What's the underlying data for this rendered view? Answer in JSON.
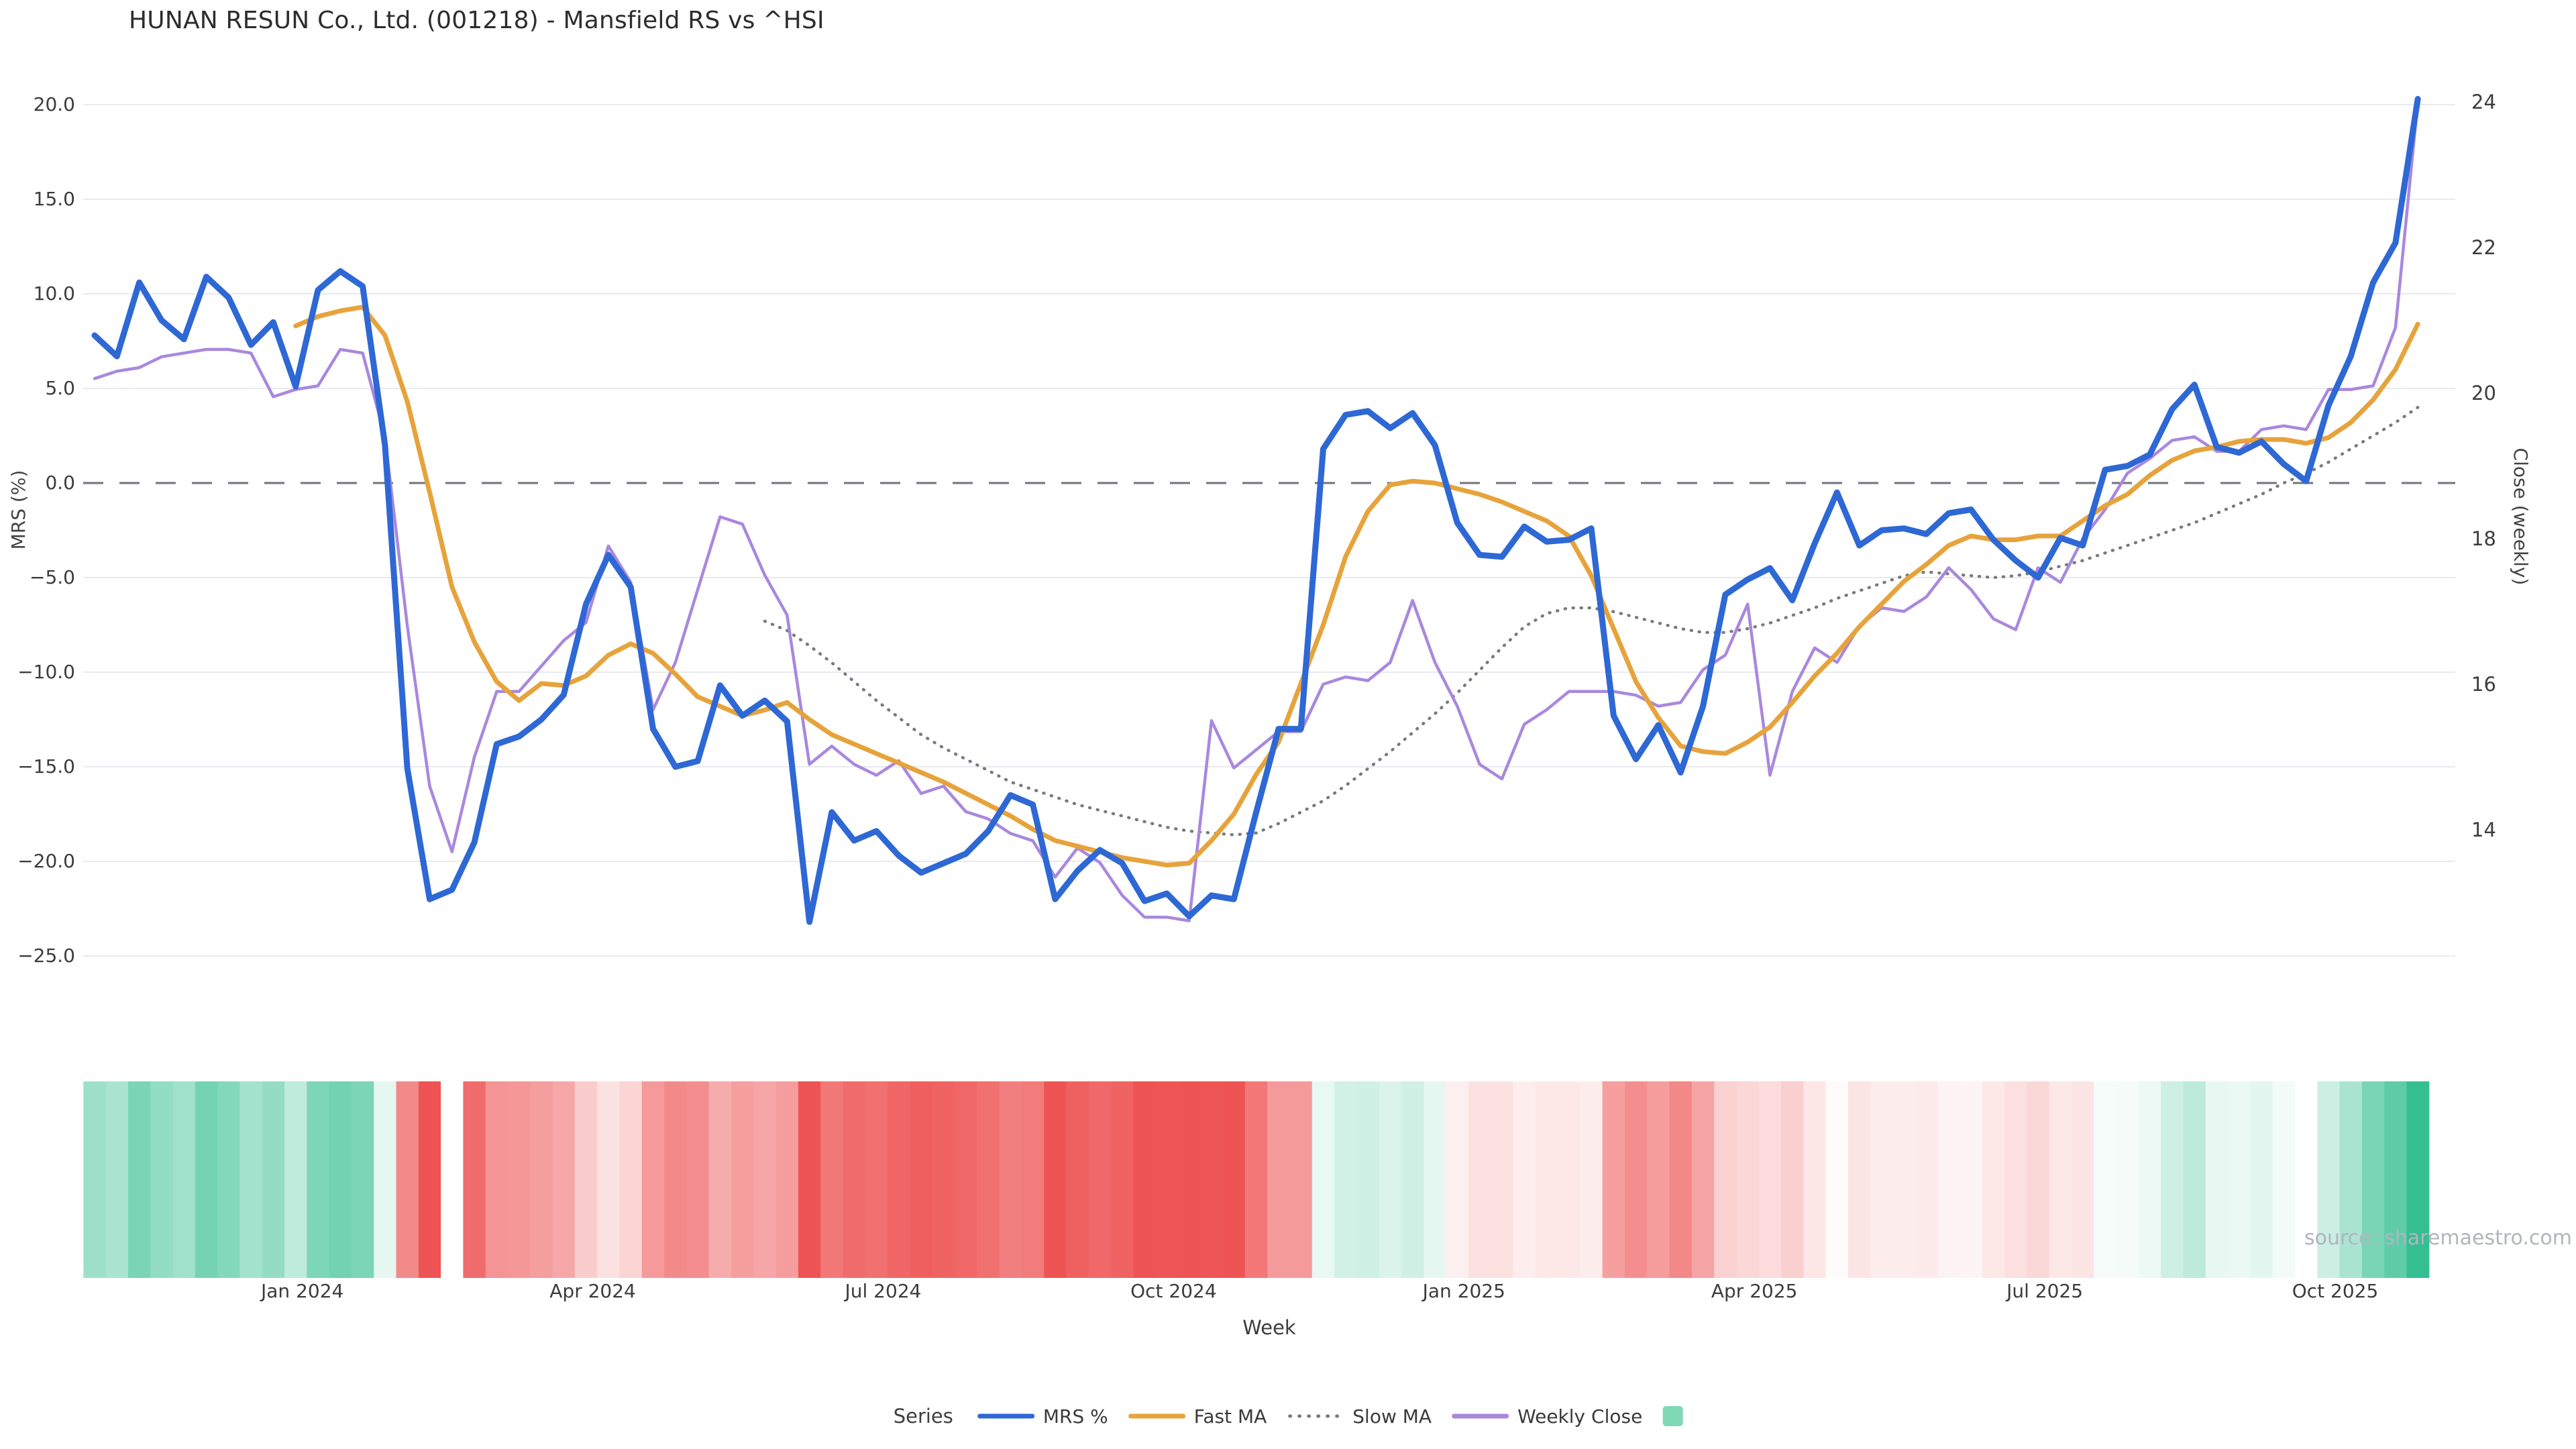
{
  "title": "HUNAN RESUN Co., Ltd. (001218) - Mansfield RS vs ^HSI",
  "source_text": "source: sharemaestro.com",
  "colors": {
    "mrs": "#2e68d5",
    "fast_ma": "#e7a33b",
    "slow_ma": "#7a7a7a",
    "weekly_close": "#a988de",
    "zero_line": "#72727c",
    "gridline": "#e8eaf0",
    "heat_green": "#35bf90",
    "heat_red": "#ee5454",
    "legend_square": "#7fd9b4",
    "text_dark": "#3c3c3c"
  },
  "legend": {
    "title": "Series",
    "items": [
      {
        "label": "MRS %",
        "swatch": "line",
        "color": "#2e68d5"
      },
      {
        "label": "Fast MA",
        "swatch": "line",
        "color": "#e7a33b"
      },
      {
        "label": "Slow MA",
        "swatch": "dotted",
        "color": "#7a7a7a"
      },
      {
        "label": "Weekly Close",
        "swatch": "line",
        "color": "#a988de"
      },
      {
        "label": "",
        "swatch": "square",
        "color": "#7fd9b4"
      }
    ]
  },
  "axes": {
    "x": {
      "title": "Week",
      "ticks": [
        {
          "week": 9.3,
          "label": "Jan 2024"
        },
        {
          "week": 22.3,
          "label": "Apr 2024"
        },
        {
          "week": 35.3,
          "label": "Jul 2024"
        },
        {
          "week": 48.3,
          "label": "Oct 2024"
        },
        {
          "week": 61.3,
          "label": "Jan 2025"
        },
        {
          "week": 74.3,
          "label": "Apr 2025"
        },
        {
          "week": 87.3,
          "label": "Jul 2025"
        },
        {
          "week": 100.3,
          "label": "Oct 2025"
        }
      ]
    },
    "y_left": {
      "title": "MRS (%)",
      "ticks": [
        {
          "v": 20,
          "label": "20.0"
        },
        {
          "v": 15,
          "label": "15.0"
        },
        {
          "v": 10,
          "label": "10.0"
        },
        {
          "v": 5,
          "label": "5.0"
        },
        {
          "v": 0,
          "label": "0.0"
        },
        {
          "v": -5,
          "label": "−5.0"
        },
        {
          "v": -10,
          "label": "−10.0"
        },
        {
          "v": -15,
          "label": "−15.0"
        },
        {
          "v": -20,
          "label": "−20.0"
        },
        {
          "v": -25,
          "label": "−25.0"
        }
      ]
    },
    "y_right": {
      "title": "Close (weekly)",
      "ticks": [
        {
          "v": 24,
          "label": "24"
        },
        {
          "v": 22,
          "label": "22"
        },
        {
          "v": 20,
          "label": "20"
        },
        {
          "v": 18,
          "label": "18"
        },
        {
          "v": 16,
          "label": "16"
        },
        {
          "v": 14,
          "label": "14"
        }
      ]
    }
  },
  "chart_data": {
    "type": "line",
    "title": "HUNAN RESUN Co., Ltd. (001218) - Mansfield RS vs ^HSI",
    "xlabel": "Week",
    "ylabel_left": "MRS (%)",
    "ylabel_right": "Close (weekly)",
    "x_unit": "weekly index, Nov 2023 - Nov 2025",
    "n_weeks": 105,
    "ylim_left": [
      -27.5,
      21.5
    ],
    "ylim_right": [
      13.2,
      24.3
    ],
    "grid": true,
    "zero_reference_line": 0,
    "legend_position": "bottom-center",
    "series": [
      {
        "name": "MRS %",
        "axis": "left",
        "style": "solid",
        "values": [
          7.8,
          6.7,
          10.6,
          8.6,
          7.6,
          10.9,
          9.8,
          7.3,
          8.5,
          5.1,
          10.2,
          11.2,
          10.4,
          2.0,
          -15.1,
          -22.0,
          -21.5,
          -19.0,
          -13.8,
          -13.4,
          -12.5,
          -11.2,
          -6.4,
          -3.8,
          -5.5,
          -13.0,
          -15.0,
          -14.7,
          -10.7,
          -12.3,
          -11.5,
          -12.6,
          -23.2,
          -17.4,
          -18.9,
          -18.4,
          -19.7,
          -20.6,
          -20.1,
          -19.6,
          -18.4,
          -16.5,
          -17.0,
          -22.0,
          -20.5,
          -19.4,
          -20.1,
          -22.1,
          -21.7,
          -22.9,
          -21.8,
          -22.0,
          -17.4,
          -13.0,
          -13.0,
          1.8,
          3.6,
          3.8,
          2.9,
          3.7,
          2.0,
          -2.1,
          -3.8,
          -3.9,
          -2.3,
          -3.1,
          -3.0,
          -2.4,
          -12.3,
          -14.6,
          -12.8,
          -15.3,
          -11.8,
          -5.9,
          -5.1,
          -4.5,
          -6.2,
          -3.2,
          -0.5,
          -3.3,
          -2.5,
          -2.4,
          -2.7,
          -1.6,
          -1.4,
          -3.0,
          -4.1,
          -5.0,
          -2.9,
          -3.3,
          0.7,
          0.9,
          1.5,
          3.9,
          5.2,
          1.9,
          1.6,
          2.2,
          1.0,
          0.1,
          4.1,
          6.7,
          10.6,
          12.7,
          20.3
        ]
      },
      {
        "name": "Fast MA",
        "axis": "left",
        "style": "solid",
        "values": [
          null,
          null,
          null,
          null,
          null,
          null,
          null,
          null,
          null,
          8.3,
          8.8,
          9.1,
          9.3,
          7.8,
          4.3,
          -0.5,
          -5.5,
          -8.4,
          -10.5,
          -11.5,
          -10.6,
          -10.7,
          -10.2,
          -9.1,
          -8.5,
          -9.0,
          -10.1,
          -11.3,
          -11.8,
          -12.3,
          -12.0,
          -11.6,
          -12.5,
          -13.3,
          -13.8,
          -14.3,
          -14.8,
          -15.3,
          -15.8,
          -16.4,
          -17.0,
          -17.6,
          -18.3,
          -18.9,
          -19.2,
          -19.5,
          -19.8,
          -20.0,
          -20.2,
          -20.1,
          -18.9,
          -17.5,
          -15.4,
          -13.7,
          -10.6,
          -7.5,
          -3.9,
          -1.5,
          -0.1,
          0.1,
          0.0,
          -0.3,
          -0.6,
          -1.0,
          -1.5,
          -2.0,
          -2.8,
          -4.9,
          -7.7,
          -10.5,
          -12.4,
          -13.9,
          -14.2,
          -14.3,
          -13.7,
          -12.9,
          -11.6,
          -10.2,
          -9.0,
          -7.6,
          -6.4,
          -5.2,
          -4.3,
          -3.3,
          -2.8,
          -3.0,
          -3.0,
          -2.8,
          -2.8,
          -2.0,
          -1.2,
          -0.6,
          0.4,
          1.2,
          1.7,
          1.9,
          2.2,
          2.3,
          2.3,
          2.1,
          2.4,
          3.2,
          4.4,
          6.0,
          8.4
        ]
      },
      {
        "name": "Slow MA",
        "axis": "left",
        "style": "dotted",
        "values": [
          null,
          null,
          null,
          null,
          null,
          null,
          null,
          null,
          null,
          null,
          null,
          null,
          null,
          null,
          null,
          null,
          null,
          null,
          null,
          null,
          null,
          null,
          null,
          null,
          null,
          null,
          null,
          null,
          null,
          null,
          -7.3,
          -7.8,
          -8.6,
          -9.5,
          -10.5,
          -11.5,
          -12.4,
          -13.3,
          -14.0,
          -14.6,
          -15.2,
          -15.8,
          -16.2,
          -16.6,
          -17.0,
          -17.3,
          -17.6,
          -17.9,
          -18.2,
          -18.4,
          -18.5,
          -18.6,
          -18.5,
          -18.0,
          -17.4,
          -16.8,
          -16.0,
          -15.1,
          -14.2,
          -13.2,
          -12.2,
          -11.1,
          -9.9,
          -8.7,
          -7.6,
          -6.9,
          -6.6,
          -6.6,
          -6.8,
          -7.1,
          -7.4,
          -7.7,
          -7.9,
          -7.9,
          -7.7,
          -7.4,
          -7.0,
          -6.6,
          -6.1,
          -5.7,
          -5.3,
          -4.9,
          -4.7,
          -4.8,
          -4.9,
          -5.0,
          -4.9,
          -4.7,
          -4.4,
          -4.1,
          -3.7,
          -3.3,
          -2.9,
          -2.5,
          -2.1,
          -1.6,
          -1.1,
          -0.6,
          0.0,
          0.5,
          1.1,
          1.8,
          2.5,
          3.2,
          4.0
        ]
      },
      {
        "name": "Weekly Close",
        "axis": "right",
        "style": "solid",
        "values": [
          20.2,
          20.3,
          20.35,
          20.5,
          20.55,
          20.6,
          20.6,
          20.55,
          19.95,
          20.05,
          20.1,
          20.6,
          20.55,
          19.4,
          16.8,
          14.6,
          13.7,
          15.0,
          15.9,
          15.9,
          16.25,
          16.6,
          16.85,
          17.9,
          17.4,
          15.65,
          16.3,
          17.3,
          18.3,
          18.2,
          17.5,
          16.95,
          14.9,
          15.15,
          14.9,
          14.75,
          14.95,
          14.5,
          14.6,
          14.25,
          14.15,
          13.95,
          13.85,
          13.35,
          13.75,
          13.55,
          13.1,
          12.8,
          12.8,
          12.75,
          15.5,
          14.85,
          15.1,
          15.35,
          15.35,
          16.0,
          16.1,
          16.05,
          16.3,
          17.15,
          16.3,
          15.7,
          14.9,
          14.7,
          15.45,
          15.65,
          15.9,
          15.9,
          15.9,
          15.85,
          15.7,
          15.75,
          16.2,
          16.4,
          17.1,
          14.75,
          15.9,
          16.5,
          16.3,
          16.8,
          17.05,
          17.0,
          17.2,
          17.6,
          17.3,
          16.9,
          16.75,
          17.6,
          17.4,
          18.0,
          18.4,
          18.9,
          19.1,
          19.35,
          19.4,
          19.2,
          19.2,
          19.5,
          19.55,
          19.5,
          20.05,
          20.05,
          20.1,
          20.9,
          24.0
        ]
      }
    ],
    "heatmap": {
      "description": "weekly strip below plot; color derived from MRS % sign and magnitude (green positive, red negative, white near zero)",
      "source_series": "MRS %",
      "missing_weeks": [
        16
      ],
      "green_scale_max": 16,
      "red_scale_max": 22
    }
  }
}
